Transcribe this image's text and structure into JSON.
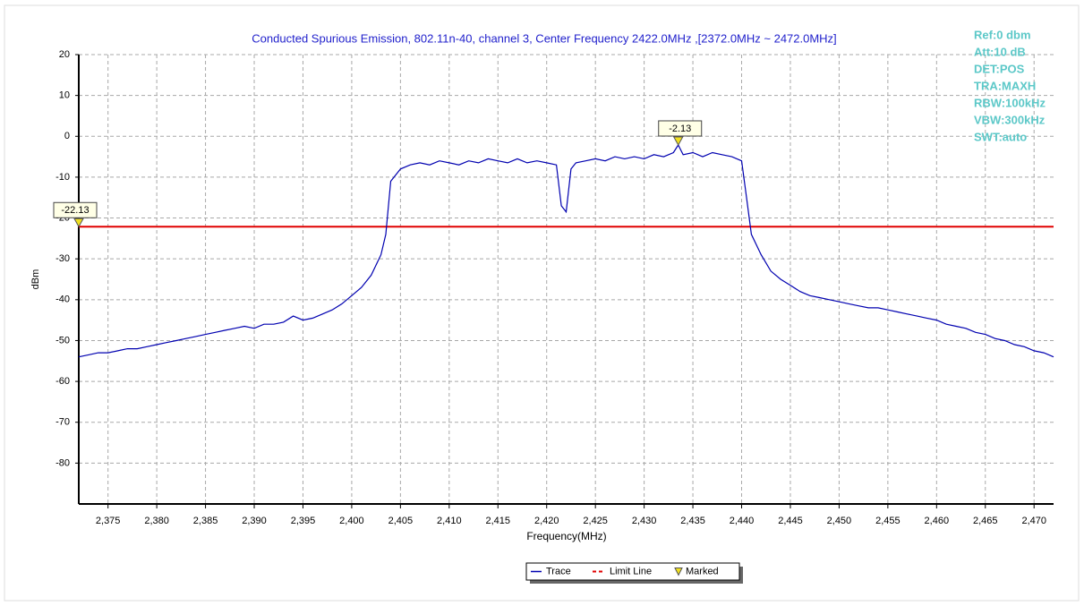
{
  "chart_data": {
    "type": "line",
    "title": "Conducted Spurious Emission, 802.11n-40, channel 3, Center Frequency 2422.0MHz ,[2372.0MHz ~ 2472.0MHz]",
    "x_label": "Frequency(MHz)",
    "y_label": "dBm",
    "xlim": [
      2372,
      2472
    ],
    "ylim": [
      -90,
      20
    ],
    "xticks": [
      {
        "value": 2375,
        "label": "2,375"
      },
      {
        "value": 2380,
        "label": "2,380"
      },
      {
        "value": 2385,
        "label": "2,385"
      },
      {
        "value": 2390,
        "label": "2,390"
      },
      {
        "value": 2395,
        "label": "2,395"
      },
      {
        "value": 2400,
        "label": "2,400"
      },
      {
        "value": 2405,
        "label": "2,405"
      },
      {
        "value": 2410,
        "label": "2,410"
      },
      {
        "value": 2415,
        "label": "2,415"
      },
      {
        "value": 2420,
        "label": "2,420"
      },
      {
        "value": 2425,
        "label": "2,425"
      },
      {
        "value": 2430,
        "label": "2,430"
      },
      {
        "value": 2435,
        "label": "2,435"
      },
      {
        "value": 2440,
        "label": "2,440"
      },
      {
        "value": 2445,
        "label": "2,445"
      },
      {
        "value": 2450,
        "label": "2,450"
      },
      {
        "value": 2455,
        "label": "2,455"
      },
      {
        "value": 2460,
        "label": "2,460"
      },
      {
        "value": 2465,
        "label": "2,465"
      },
      {
        "value": 2470,
        "label": "2,470"
      }
    ],
    "yticks": [
      20,
      10,
      0,
      -10,
      -20,
      -30,
      -40,
      -50,
      -60,
      -70,
      -80
    ],
    "grid": true,
    "x": [
      2372,
      2373,
      2374,
      2375,
      2376,
      2377,
      2378,
      2379,
      2380,
      2381,
      2382,
      2383,
      2384,
      2385,
      2386,
      2387,
      2388,
      2389,
      2390,
      2391,
      2392,
      2393,
      2394,
      2395,
      2396,
      2397,
      2398,
      2399,
      2400,
      2401,
      2402,
      2403,
      2403.5,
      2404,
      2405,
      2406,
      2407,
      2408,
      2409,
      2410,
      2411,
      2412,
      2413,
      2414,
      2415,
      2416,
      2417,
      2418,
      2419,
      2420,
      2421,
      2421.5,
      2422,
      2422.5,
      2423,
      2424,
      2425,
      2426,
      2427,
      2428,
      2429,
      2430,
      2431,
      2432,
      2433,
      2433.5,
      2434,
      2435,
      2436,
      2437,
      2438,
      2439,
      2440,
      2440.5,
      2441,
      2442,
      2443,
      2444,
      2445,
      2446,
      2447,
      2448,
      2449,
      2450,
      2451,
      2452,
      2453,
      2454,
      2455,
      2456,
      2457,
      2458,
      2459,
      2460,
      2461,
      2462,
      2463,
      2464,
      2465,
      2466,
      2467,
      2468,
      2469,
      2470,
      2471,
      2472
    ],
    "series": [
      {
        "name": "Trace",
        "color": "#0000b0",
        "values": [
          -54,
          -53.5,
          -53,
          -53,
          -52.5,
          -52,
          -52,
          -51.5,
          -51,
          -50.5,
          -50,
          -49.5,
          -49,
          -48.5,
          -48,
          -47.5,
          -47,
          -46.5,
          -47,
          -46,
          -46,
          -45.5,
          -44,
          -45,
          -44.5,
          -43.5,
          -42.5,
          -41,
          -39,
          -37,
          -34,
          -29,
          -24,
          -11,
          -8,
          -7,
          -6.5,
          -7,
          -6,
          -6.5,
          -7,
          -6,
          -6.5,
          -5.5,
          -6,
          -6.5,
          -5.5,
          -6.5,
          -6,
          -6.5,
          -7,
          -17,
          -18.5,
          -8,
          -6.5,
          -6,
          -5.5,
          -6,
          -5,
          -5.5,
          -5,
          -5.5,
          -4.5,
          -5,
          -4,
          -2.13,
          -4.5,
          -4,
          -5,
          -4,
          -4.5,
          -5,
          -6,
          -15,
          -24,
          -29,
          -33,
          -35,
          -36.5,
          -38,
          -39,
          -39.5,
          -40,
          -40.5,
          -41,
          -41.5,
          -42,
          -42,
          -42.5,
          -43,
          -43.5,
          -44,
          -44.5,
          -45,
          -46,
          -46.5,
          -47,
          -48,
          -48.5,
          -49.5,
          -50,
          -51,
          -51.5,
          -52.5,
          -53,
          -54
        ]
      }
    ],
    "limit_line": {
      "name": "Limit Line",
      "value": -22.13,
      "color": "#e00000"
    },
    "marker_name": "Marked",
    "markers": [
      {
        "x": 2433.5,
        "y": -2.13
      },
      {
        "x": 2372,
        "y": -22.13
      }
    ],
    "info": [
      "Ref:0 dbm",
      "Att:10 dB",
      "DET:POS",
      "TRA:MAXH",
      "RBW:100kHz",
      "VBW:300kHz",
      "SWT:auto"
    ]
  }
}
